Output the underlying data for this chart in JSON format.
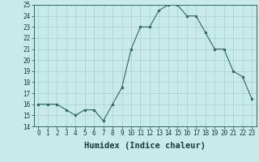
{
  "x": [
    0,
    1,
    2,
    3,
    4,
    5,
    6,
    7,
    8,
    9,
    10,
    11,
    12,
    13,
    14,
    15,
    16,
    17,
    18,
    19,
    20,
    21,
    22,
    23
  ],
  "y": [
    16,
    16,
    16,
    15.5,
    15,
    15.5,
    15.5,
    14.5,
    16,
    17.5,
    21,
    23,
    23,
    24.5,
    25,
    25,
    24,
    24,
    22.5,
    21,
    21,
    19,
    18.5,
    16.5
  ],
  "xlabel": "Humidex (Indice chaleur)",
  "ylim": [
    14,
    25
  ],
  "xlim": [
    -0.5,
    23.5
  ],
  "yticks": [
    14,
    15,
    16,
    17,
    18,
    19,
    20,
    21,
    22,
    23,
    24,
    25
  ],
  "xticks": [
    0,
    1,
    2,
    3,
    4,
    5,
    6,
    7,
    8,
    9,
    10,
    11,
    12,
    13,
    14,
    15,
    16,
    17,
    18,
    19,
    20,
    21,
    22,
    23
  ],
  "line_color": "#2d6b5e",
  "marker_color": "#2d6b5e",
  "bg_color": "#c8eae8",
  "grid_color": "#aacfcc",
  "tick_label_fontsize": 5.5,
  "xlabel_fontsize": 7.5,
  "xlabel_fontweight": "bold"
}
